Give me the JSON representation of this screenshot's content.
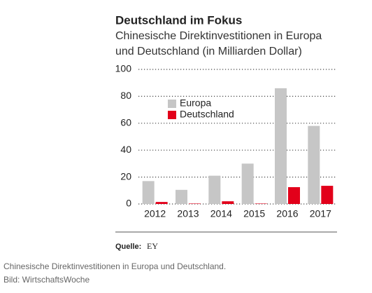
{
  "chart_data": {
    "type": "bar",
    "title": "Deutschland im Fokus",
    "subtitle": [
      "Chinesische Direktinvestitionen in Europa",
      "und Deutschland (in Milliarden Dollar)"
    ],
    "categories": [
      "2012",
      "2013",
      "2014",
      "2015",
      "2016",
      "2017"
    ],
    "series": [
      {
        "name": "Europa",
        "color": "#c6c6c6",
        "values": [
          17,
          10.5,
          21,
          30,
          86,
          58
        ]
      },
      {
        "name": "Deutschland",
        "color": "#e2001a",
        "values": [
          1.5,
          0.3,
          2,
          0.3,
          12.5,
          13.5
        ]
      }
    ],
    "ylim": [
      0,
      100
    ],
    "yticks": [
      0,
      20,
      40,
      60,
      80,
      100
    ],
    "grid": true,
    "source_label": "Quelle:",
    "source": "EY"
  },
  "caption": {
    "text": "Chinesische Direktinvestitionen in Europa und Deutschland.",
    "credit": "Bild:  WirtschaftsWoche"
  }
}
